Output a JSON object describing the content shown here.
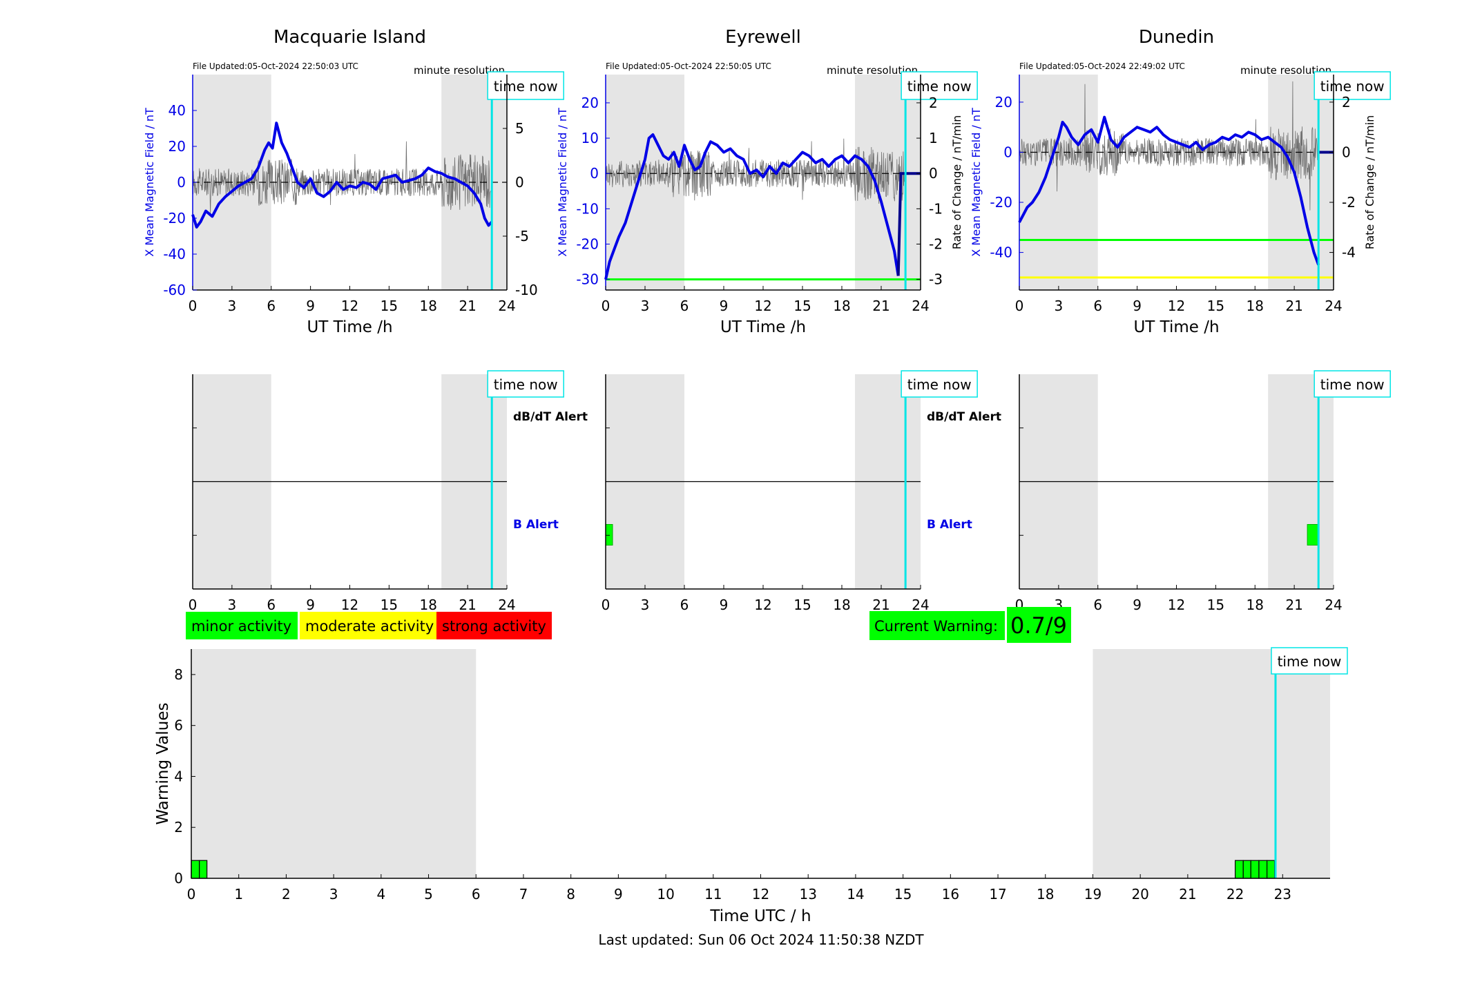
{
  "stations": [
    {
      "name": "Macquarie Island",
      "file_updated": "File Updated:05-Oct-2024 22:50:03 UTC",
      "resolution": "minute resolution",
      "left_ylabel": "X Mean Magnetic Field / nT",
      "right_ylabel": "",
      "left_ticks": [
        "40",
        "20",
        "0",
        "-20",
        "-40",
        "-60"
      ],
      "right_ticks": [
        "5",
        "0",
        "-5",
        "-10"
      ],
      "alert_labels": {
        "dbdt": "dB/dT Alert",
        "b": "B Alert"
      }
    },
    {
      "name": "Eyrewell",
      "file_updated": "File Updated:05-Oct-2024 22:50:05 UTC",
      "resolution": "minute resolution",
      "left_ylabel": "X Mean Magnetic Field / nT",
      "right_ylabel": "Rate of Change / nT/min",
      "left_ticks": [
        "20",
        "10",
        "0",
        "-10",
        "-20",
        "-30"
      ],
      "right_ticks": [
        "2",
        "1",
        "0",
        "-1",
        "-2",
        "-3"
      ],
      "alert_labels": {
        "dbdt": "dB/dT Alert",
        "b": "B Alert"
      }
    },
    {
      "name": "Dunedin",
      "file_updated": "File Updated:05-Oct-2024 22:49:02 UTC",
      "resolution": "minute resolution",
      "left_ylabel": "X Mean Magnetic Field / nT",
      "right_ylabel": "Rate of Change / nT/min",
      "left_ticks": [
        "20",
        "0",
        "-20",
        "-40"
      ],
      "right_ticks": [
        "2",
        "0",
        "-2",
        "-4"
      ],
      "alert_labels": {
        "dbdt": "",
        "b": ""
      }
    }
  ],
  "time_now_label": "time now",
  "ut_xlabel": "UT Time /h",
  "hour_ticks": [
    "0",
    "3",
    "6",
    "9",
    "12",
    "15",
    "18",
    "21",
    "24"
  ],
  "legend": {
    "minor": "minor activity",
    "moderate": "moderate activity",
    "strong": "strong activity"
  },
  "current_warning": {
    "label": "Current Warning:",
    "value": "0.7/9"
  },
  "warning_plot": {
    "ylabel": "Warning Values",
    "xlabel": "Time UTC / h",
    "yticks": [
      "8",
      "6",
      "4",
      "2",
      "0"
    ],
    "xticks": [
      "0",
      "1",
      "2",
      "3",
      "4",
      "5",
      "6",
      "7",
      "8",
      "9",
      "10",
      "11",
      "12",
      "13",
      "14",
      "15",
      "16",
      "17",
      "18",
      "19",
      "20",
      "21",
      "22",
      "23"
    ]
  },
  "last_updated": "Last updated: Sun 06 Oct 2024 11:50:38 NZDT",
  "colors": {
    "field": "#0000e6",
    "derivative": "#6e6e6e",
    "night_shade": "#e5e5e5",
    "time_now": "#00e5e5",
    "minor": "#00ff00",
    "moderate": "#ffff00",
    "strong": "#ff0000"
  },
  "chart_data": [
    {
      "type": "line",
      "title": "Macquarie Island",
      "xlabel": "UT Time /h",
      "ylabel": "X Mean Magnetic Field / nT",
      "xlim": [
        0,
        24
      ],
      "ylim": [
        -60,
        60
      ],
      "y2lim": [
        -10,
        10
      ],
      "night_bands": [
        [
          0,
          6
        ],
        [
          19,
          24
        ]
      ],
      "time_now": 22.85,
      "series": [
        {
          "name": "X Mean Magnetic Field / nT",
          "x": [
            0,
            0.3,
            0.6,
            1,
            1.5,
            2,
            2.5,
            3,
            3.5,
            4,
            4.5,
            5,
            5.5,
            5.8,
            6.1,
            6.4,
            6.8,
            7.2,
            7.6,
            8,
            8.5,
            9,
            9.5,
            10,
            10.5,
            11,
            11.5,
            12,
            12.5,
            13,
            13.5,
            14,
            14.5,
            15,
            15.5,
            16,
            16.5,
            17,
            17.5,
            18,
            18.5,
            19,
            19.5,
            20,
            20.5,
            21,
            21.5,
            22,
            22.3,
            22.6,
            22.85
          ],
          "y": [
            -18,
            -25,
            -22,
            -16,
            -19,
            -12,
            -8,
            -5,
            -2,
            0,
            2,
            8,
            18,
            22,
            19,
            33,
            22,
            16,
            8,
            0,
            -3,
            2,
            -6,
            -8,
            -5,
            0,
            -4,
            -2,
            -3,
            0,
            -1,
            -4,
            2,
            3,
            4,
            0,
            1,
            2,
            4,
            8,
            6,
            5,
            3,
            2,
            0,
            -2,
            -6,
            -12,
            -20,
            -24,
            -22
          ]
        },
        {
          "name": "Rate of Change / nT/min",
          "axis": "right",
          "noisy": true
        }
      ],
      "thresholds": []
    },
    {
      "type": "line",
      "title": "Eyrewell",
      "xlabel": "UT Time /h",
      "ylabel": "X Mean Magnetic Field / nT",
      "xlim": [
        0,
        24
      ],
      "ylim": [
        -33,
        28
      ],
      "y2lim": [
        -3.3,
        2.8
      ],
      "night_bands": [
        [
          0,
          6
        ],
        [
          19,
          24
        ]
      ],
      "time_now": 22.85,
      "series": [
        {
          "name": "X Mean Magnetic Field / nT",
          "x": [
            0,
            0.3,
            0.6,
            1,
            1.5,
            2,
            2.5,
            3,
            3.3,
            3.6,
            4,
            4.4,
            4.8,
            5.2,
            5.6,
            6,
            6.4,
            6.8,
            7.2,
            7.6,
            8,
            8.5,
            9,
            9.5,
            10,
            10.5,
            11,
            11.5,
            12,
            12.5,
            13,
            13.5,
            14,
            14.5,
            15,
            15.5,
            16,
            16.5,
            17,
            17.5,
            18,
            18.5,
            19,
            19.5,
            20,
            20.5,
            21,
            21.5,
            22,
            22.3
          ],
          "y": [
            -30,
            -25,
            -22,
            -18,
            -14,
            -8,
            -2,
            4,
            10,
            11,
            8,
            5,
            4,
            6,
            2,
            8,
            4,
            1,
            2,
            6,
            9,
            8,
            6,
            7,
            5,
            4,
            0,
            1,
            -1,
            2,
            0,
            3,
            2,
            4,
            6,
            5,
            3,
            4,
            2,
            4,
            5,
            3,
            5,
            4,
            2,
            -2,
            -8,
            -15,
            -22,
            -29
          ]
        },
        {
          "name": "Rate of Change / nT/min",
          "axis": "right",
          "noisy": true
        }
      ],
      "post_now": {
        "x": [
          22.3,
          22.5,
          24
        ],
        "y": [
          -29,
          0,
          0
        ]
      },
      "thresholds": [
        {
          "y": -30,
          "color": "#00ff00"
        }
      ]
    },
    {
      "type": "line",
      "title": "Dunedin",
      "xlabel": "UT Time /h",
      "ylabel": "X Mean Magnetic Field / nT",
      "xlim": [
        0,
        24
      ],
      "ylim": [
        -55,
        31
      ],
      "y2lim": [
        -5.5,
        3.1
      ],
      "night_bands": [
        [
          0,
          6
        ],
        [
          19,
          24
        ]
      ],
      "time_now": 22.85,
      "series": [
        {
          "name": "X Mean Magnetic Field / nT",
          "x": [
            0,
            0.3,
            0.6,
            1,
            1.5,
            2,
            2.5,
            3,
            3.3,
            3.6,
            4,
            4.5,
            5,
            5.5,
            6,
            6.5,
            7,
            7.5,
            8,
            8.5,
            9,
            9.5,
            10,
            10.5,
            11,
            11.5,
            12,
            12.5,
            13,
            13.5,
            14,
            14.5,
            15,
            15.5,
            16,
            16.5,
            17,
            17.5,
            18,
            18.5,
            19,
            19.5,
            20,
            20.5,
            21,
            21.5,
            22,
            22.5,
            22.85
          ],
          "y": [
            -28,
            -25,
            -22,
            -20,
            -16,
            -10,
            -2,
            6,
            12,
            10,
            6,
            3,
            7,
            9,
            4,
            14,
            5,
            2,
            6,
            8,
            10,
            9,
            8,
            10,
            7,
            5,
            4,
            3,
            2,
            4,
            1,
            3,
            4,
            6,
            5,
            7,
            6,
            8,
            7,
            5,
            6,
            4,
            2,
            -2,
            -8,
            -18,
            -30,
            -40,
            -45
          ]
        },
        {
          "name": "Rate of Change / nT/min",
          "axis": "right",
          "noisy": true
        }
      ],
      "post_now": {
        "x": [
          22.9,
          24
        ],
        "y": [
          0,
          0
        ]
      },
      "thresholds": [
        {
          "y": -35,
          "color": "#00ff00"
        },
        {
          "y": -50,
          "color": "#ffff00"
        }
      ]
    },
    {
      "type": "bar",
      "title": "Alerts",
      "xlim": [
        0,
        24
      ],
      "panels": [
        {
          "station": "Macquarie Island",
          "b_alert": [],
          "dbdt_alert": []
        },
        {
          "station": "Eyrewell",
          "b_alert": [
            [
              0,
              0.4
            ]
          ],
          "dbdt_alert": []
        },
        {
          "station": "Dunedin",
          "b_alert": [
            [
              22,
              22.8
            ]
          ],
          "dbdt_alert": []
        }
      ]
    },
    {
      "type": "bar",
      "title": "",
      "xlabel": "Time UTC / h",
      "ylabel": "Warning Values",
      "xlim": [
        0,
        24
      ],
      "ylim": [
        0,
        9
      ],
      "night_bands": [
        [
          0,
          6
        ],
        [
          19,
          24
        ]
      ],
      "time_now": 22.85,
      "bars": [
        {
          "start": 0.0,
          "end": 0.17,
          "value": 0.7
        },
        {
          "start": 0.17,
          "end": 0.33,
          "value": 0.7
        },
        {
          "start": 22.0,
          "end": 22.17,
          "value": 0.7
        },
        {
          "start": 22.17,
          "end": 22.33,
          "value": 0.7
        },
        {
          "start": 22.33,
          "end": 22.5,
          "value": 0.7
        },
        {
          "start": 22.5,
          "end": 22.67,
          "value": 0.7
        },
        {
          "start": 22.67,
          "end": 22.83,
          "value": 0.7
        }
      ]
    }
  ]
}
